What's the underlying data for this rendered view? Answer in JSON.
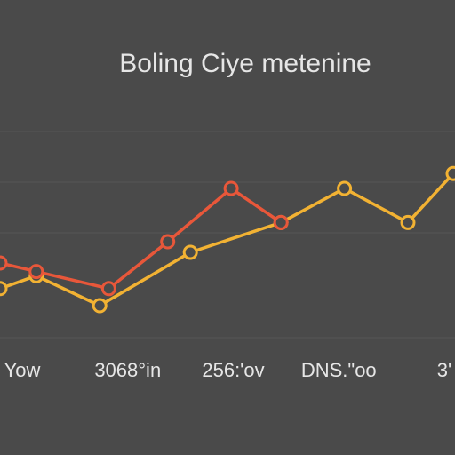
{
  "chart_data": {
    "type": "line",
    "title": "Boling Ciye metenine",
    "xlim": [
      0,
      100
    ],
    "ylim": [
      0,
      100
    ],
    "markers": true,
    "x_labels": [
      "Yow",
      "3068°in",
      "256:'ov",
      "DNS.\"oo",
      "3'"
    ],
    "series": [
      {
        "name": "yellow",
        "color": "#f2b233",
        "x": [
          0,
          8,
          22,
          42,
          62,
          76,
          90,
          100
        ],
        "values": [
          23,
          29,
          15,
          40,
          54,
          70,
          54,
          77
        ]
      },
      {
        "name": "red",
        "color": "#e8573a",
        "x": [
          0,
          8,
          24,
          37,
          51,
          62
        ],
        "values": [
          35,
          31,
          23,
          45,
          70,
          54
        ]
      }
    ]
  }
}
